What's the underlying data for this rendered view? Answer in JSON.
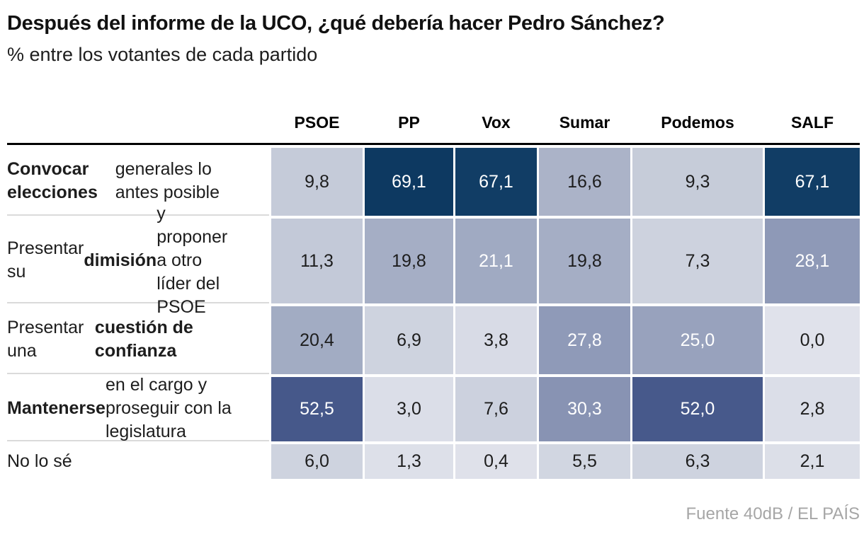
{
  "footer": {
    "source": "Fuente 40dB / EL PAÍS"
  },
  "colors": {
    "text_dark": "#1d1d1d",
    "text_light": "#ffffff",
    "header_rule": "#000000",
    "row_rule": "#dadada",
    "source_text": "#a6a6a6",
    "background": "#ffffff"
  },
  "chart_data": {
    "type": "heatmap",
    "title": "Después del informe de la UCO, ¿qué debería hacer Pedro Sánchez?",
    "subtitle": "% entre los votantes de cada partido",
    "unit": "%",
    "columns": [
      "PSOE",
      "PP",
      "Vox",
      "Sumar",
      "Podemos",
      "SALF"
    ],
    "white_text_threshold": 21,
    "rows": [
      {
        "label_segments": [
          {
            "text": "Convocar elecciones",
            "bold": true
          },
          {
            "text": " generales lo antes posible",
            "bold": false
          }
        ],
        "values": [
          9.8,
          69.1,
          67.1,
          16.6,
          9.3,
          67.1
        ],
        "display": [
          "9,8",
          "69,1",
          "67,1",
          "16,6",
          "9,3",
          "67,1"
        ],
        "cell_colors": [
          "#c5cbd9",
          "#0d3961",
          "#113d65",
          "#abb3c8",
          "#c6ccd9",
          "#113d65"
        ]
      },
      {
        "label_segments": [
          {
            "text": "Presentar su ",
            "bold": false
          },
          {
            "text": "dimisión",
            "bold": true
          },
          {
            "text": " y proponer a otro líder del PSOE",
            "bold": false
          }
        ],
        "values": [
          11.3,
          19.8,
          21.1,
          19.8,
          7.3,
          28.1
        ],
        "display": [
          "11,3",
          "19,8",
          "21,1",
          "19,8",
          "7,3",
          "28,1"
        ],
        "cell_colors": [
          "#c3c9d8",
          "#a5aec5",
          "#a0aac2",
          "#a5aec5",
          "#cdd2de",
          "#8e99b7"
        ]
      },
      {
        "label_segments": [
          {
            "text": "Presentar una ",
            "bold": false
          },
          {
            "text": "cuestión de confianza",
            "bold": true
          }
        ],
        "values": [
          20.4,
          6.9,
          3.8,
          27.8,
          25.0,
          0.0
        ],
        "display": [
          "20,4",
          "6,9",
          "3,8",
          "27,8",
          "25,0",
          "0,0"
        ],
        "cell_colors": [
          "#a2acc3",
          "#ced3df",
          "#d8dbe6",
          "#8f9ab8",
          "#98a2bd",
          "#e0e2eb"
        ]
      },
      {
        "label_segments": [
          {
            "text": "Mantenerse",
            "bold": true
          },
          {
            "text": " en el cargo y proseguir con la legislatura",
            "bold": false
          }
        ],
        "values": [
          52.5,
          3.0,
          7.6,
          30.3,
          52.0,
          2.8
        ],
        "display": [
          "52,5",
          "3,0",
          "7,6",
          "30,3",
          "52,0",
          "2,8"
        ],
        "cell_colors": [
          "#46588a",
          "#dbdee8",
          "#ccd1de",
          "#8893b3",
          "#47598b",
          "#dbdee8"
        ]
      },
      {
        "label_segments": [
          {
            "text": "No lo sé",
            "bold": false
          }
        ],
        "values": [
          6.0,
          1.3,
          0.4,
          5.5,
          6.3,
          2.1
        ],
        "display": [
          "6,0",
          "1,3",
          "0,4",
          "5,5",
          "6,3",
          "2,1"
        ],
        "cell_colors": [
          "#ced3df",
          "#dde0e9",
          "#dfe1ea",
          "#d1d6e1",
          "#ced3df",
          "#dcdfe8"
        ]
      }
    ]
  }
}
